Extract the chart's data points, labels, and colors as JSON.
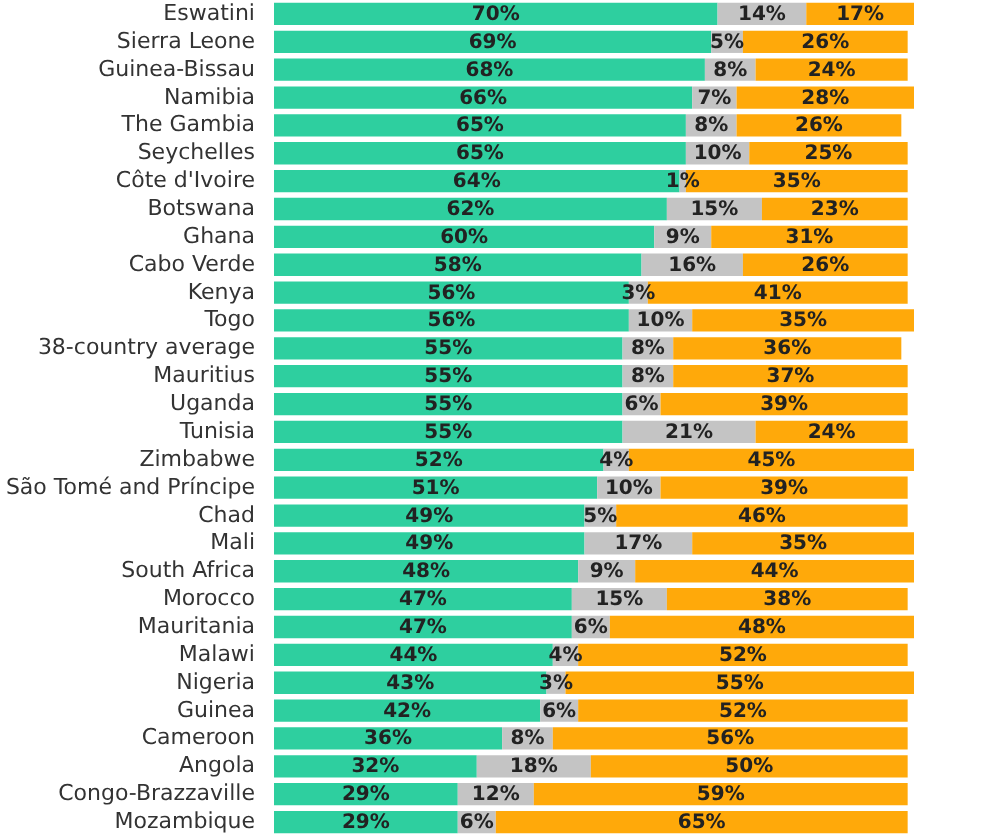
{
  "chart_data": {
    "type": "bar",
    "orientation": "horizontal",
    "stacked": true,
    "tick_labels": "y",
    "legend": false,
    "categories": [
      "Eswatini",
      "Sierra Leone",
      "Guinea-Bissau",
      "Namibia",
      "The Gambia",
      "Seychelles",
      "Côte d'Ivoire",
      "Botswana",
      "Ghana",
      "Cabo Verde",
      "Kenya",
      "Togo",
      "38-country average",
      "Mauritius",
      "Uganda",
      "Tunisia",
      "Zimbabwe",
      "São Tomé and Príncipe",
      "Chad",
      "Mali",
      "South Africa",
      "Morocco",
      "Mauritania",
      "Malawi",
      "Nigeria",
      "Guinea",
      "Cameroon",
      "Angola",
      "Congo-Brazzaville",
      "Mozambique"
    ],
    "series": [
      {
        "color": "#2ecf9f",
        "values": [
          70,
          69,
          68,
          66,
          65,
          65,
          64,
          62,
          60,
          58,
          56,
          56,
          55,
          55,
          55,
          55,
          52,
          51,
          49,
          49,
          48,
          47,
          47,
          44,
          43,
          42,
          36,
          32,
          29,
          29
        ],
        "value_labels": [
          "70%",
          "69%",
          "68%",
          "66%",
          "65%",
          "65%",
          "64%",
          "62%",
          "60%",
          "58%",
          "56%",
          "56%",
          "55%",
          "55%",
          "55%",
          "55%",
          "52%",
          "51%",
          "49%",
          "49%",
          "48%",
          "47%",
          "47%",
          "44%",
          "43%",
          "42%",
          "36%",
          "32%",
          "29%",
          "29%"
        ]
      },
      {
        "color": "#c4c4c4",
        "values": [
          14,
          5,
          8,
          7,
          8,
          10,
          1,
          15,
          9,
          16,
          3,
          10,
          8,
          8,
          6,
          21,
          4,
          10,
          5,
          17,
          9,
          15,
          6,
          4,
          3,
          6,
          8,
          18,
          12,
          6
        ],
        "value_labels": [
          "14%",
          "5%",
          "8%",
          "7%",
          "8%",
          "10%",
          "1%",
          "15%",
          "9%",
          "16%",
          "3%",
          "10%",
          "8%",
          "8%",
          "6%",
          "21%",
          "4%",
          "10%",
          "5%",
          "17%",
          "9%",
          "15%",
          "6%",
          "4%",
          "3%",
          "6%",
          "8%",
          "18%",
          "12%",
          "6%"
        ]
      },
      {
        "color": "#ffa90a",
        "values": [
          17,
          26,
          24,
          28,
          26,
          25,
          35,
          23,
          31,
          26,
          41,
          35,
          36,
          37,
          39,
          24,
          45,
          39,
          46,
          35,
          44,
          38,
          48,
          52,
          55,
          52,
          56,
          50,
          59,
          65
        ],
        "value_labels": [
          "17%",
          "26%",
          "24%",
          "28%",
          "26%",
          "25%",
          "35%",
          "23%",
          "31%",
          "26%",
          "41%",
          "35%",
          "36%",
          "37%",
          "39%",
          "24%",
          "45%",
          "39%",
          "46%",
          "35%",
          "44%",
          "38%",
          "48%",
          "52%",
          "55%",
          "52%",
          "56%",
          "50%",
          "59%",
          "65%"
        ]
      }
    ]
  }
}
